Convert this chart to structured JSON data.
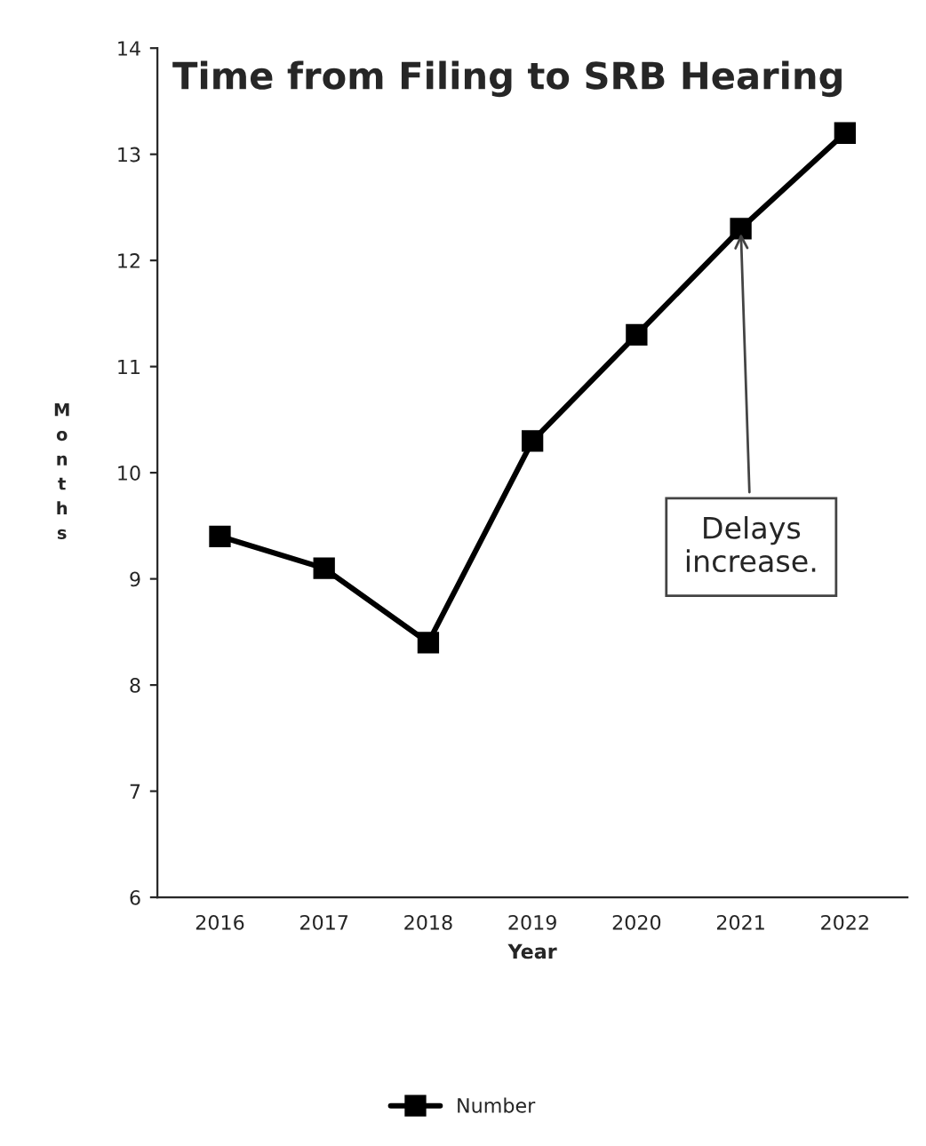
{
  "chart_data": {
    "type": "line",
    "title": "Time from Filing to SRB Hearing",
    "xlabel": "Year",
    "ylabel": "Months",
    "categories": [
      "2016",
      "2017",
      "2018",
      "2019",
      "2020",
      "2021",
      "2022"
    ],
    "series": [
      {
        "name": "Number",
        "color": "#000000",
        "values": [
          9.4,
          9.1,
          8.4,
          10.3,
          11.3,
          12.3,
          13.2
        ]
      }
    ],
    "ylim": [
      6,
      14
    ],
    "yticks": [
      6,
      7,
      8,
      9,
      10,
      11,
      12,
      13,
      14
    ],
    "annotations": [
      {
        "text": "Delays\nincrease.",
        "x": "2021",
        "y": 12.3
      }
    ],
    "marker": "square",
    "line_style": "solid",
    "grid": false,
    "legend": "bottom"
  }
}
